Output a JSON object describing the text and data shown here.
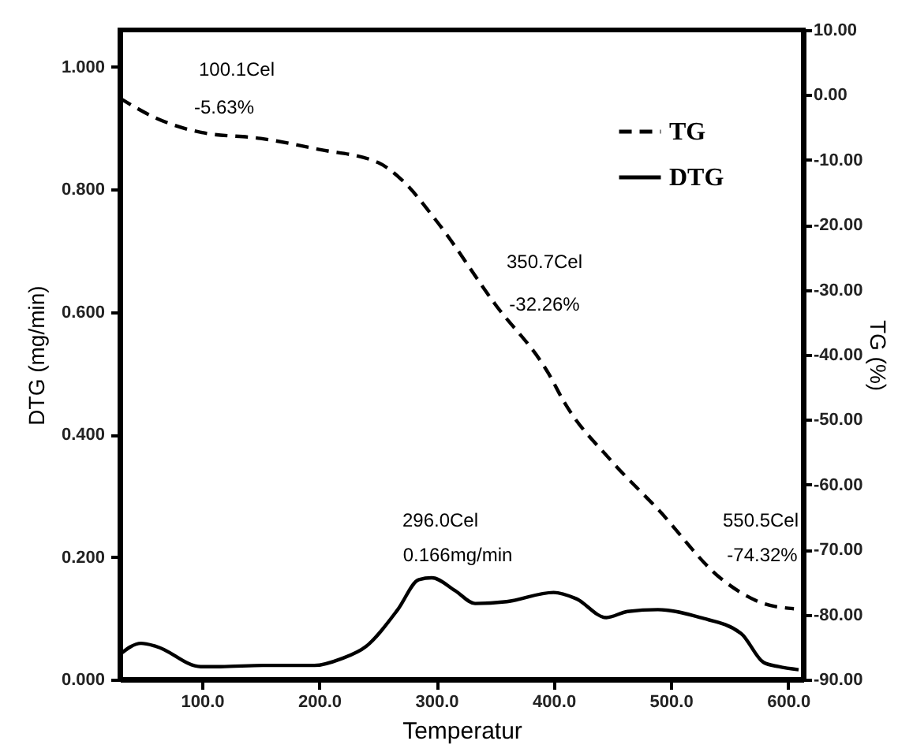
{
  "chart_data": {
    "type": "line",
    "xlabel": "Temperatur",
    "ylabel": "DTG (mg/min)",
    "y2label": "TG (%)",
    "xlim": [
      30,
      613
    ],
    "xticks": [
      {
        "value": 100,
        "label": "100.0"
      },
      {
        "value": 200,
        "label": "200.0"
      },
      {
        "value": 300,
        "label": "300.0"
      },
      {
        "value": 400,
        "label": "400.0"
      },
      {
        "value": 500,
        "label": "500.0"
      },
      {
        "value": 600,
        "label": "600.0"
      }
    ],
    "ylim": [
      0,
      1.06
    ],
    "yticks": [
      {
        "value": 0,
        "label": "0.000"
      },
      {
        "value": 0.2,
        "label": "0.200"
      },
      {
        "value": 0.4,
        "label": "0.400"
      },
      {
        "value": 0.6,
        "label": "0.600"
      },
      {
        "value": 0.8,
        "label": "0.800"
      },
      {
        "value": 1,
        "label": "1.000"
      }
    ],
    "y2lim": [
      -90,
      10
    ],
    "y2ticks": [
      {
        "value": 10,
        "label": "10.00"
      },
      {
        "value": 0,
        "label": "0.00"
      },
      {
        "value": -10,
        "label": "-10.00"
      },
      {
        "value": -20,
        "label": "-20.00"
      },
      {
        "value": -30,
        "label": "-30.00"
      },
      {
        "value": -40,
        "label": "-40.00"
      },
      {
        "value": -50,
        "label": "-50.00"
      },
      {
        "value": -60,
        "label": "-60.00"
      },
      {
        "value": -70,
        "label": "-70.00"
      },
      {
        "value": -80,
        "label": "-80.00"
      },
      {
        "value": -90,
        "label": "-90.00"
      }
    ],
    "legend": "top right",
    "series": [
      {
        "name": "TG",
        "color": "#000000",
        "axis": "y2",
        "line_style": "dashed",
        "x": [
          30,
          60,
          100,
          150,
          200,
          250,
          270,
          300,
          350,
          396,
          409,
          449,
          489,
          543,
          579,
          605
        ],
        "values": [
          -0.5,
          -3.5,
          -5.8,
          -6.7,
          -8.4,
          -10.4,
          -13,
          -19.4,
          -32.2,
          -43,
          -47.3,
          -56.3,
          -63.8,
          -74.5,
          -78.3,
          -79.1
        ]
      },
      {
        "name": "DTG",
        "color": "#000000",
        "line_style": "solid",
        "x": [
          30,
          48,
          61,
          99,
          116,
          152,
          196,
          219,
          240,
          267,
          285,
          296,
          316,
          333,
          360,
          400,
          419,
          445,
          463,
          489,
          525,
          560,
          579,
          592,
          609
        ],
        "values": [
          0.041,
          0.059,
          0.054,
          0.021,
          0.021,
          0.023,
          0.023,
          0.034,
          0.054,
          0.114,
          0.163,
          0.166,
          0.145,
          0.124,
          0.127,
          0.142,
          0.132,
          0.101,
          0.111,
          0.114,
          0.101,
          0.075,
          0.028,
          0.021,
          0.016
        ]
      }
    ],
    "annotations": [
      "100.1Cel",
      "-5.63%",
      "350.7Cel",
      "-32.26%",
      "296.0Cel",
      "0.166mg/min",
      "550.5Cel",
      "-74.32%"
    ]
  }
}
